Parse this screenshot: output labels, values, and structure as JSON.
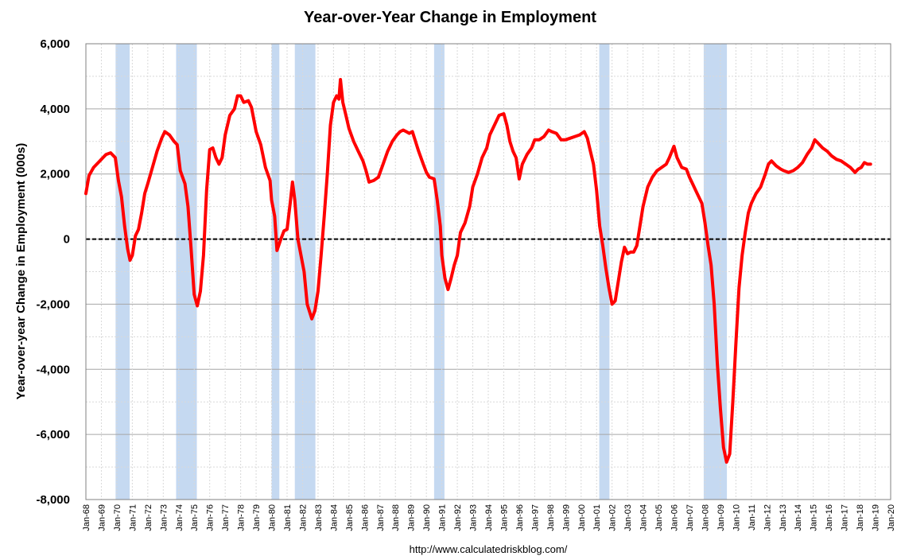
{
  "chart_data": {
    "type": "line",
    "title": "Year-over-Year Change in Employment",
    "xlabel": "",
    "ylabel": "Year-over-year Change in Employment (000s)",
    "source": "http://www.calculatedriskblog.com/",
    "ylim": [
      -8000,
      6000
    ],
    "xlim": [
      "Jan-68",
      "Jan-20"
    ],
    "yticks": [
      "-8,000",
      "-6,000",
      "-4,000",
      "-2,000",
      "0",
      "2,000",
      "4,000",
      "6,000"
    ],
    "ytick_values": [
      -8000,
      -6000,
      -4000,
      -2000,
      0,
      2000,
      4000,
      6000
    ],
    "xticks": [
      "Jan-68",
      "Jan-69",
      "Jan-70",
      "Jan-71",
      "Jan-72",
      "Jan-73",
      "Jan-74",
      "Jan-75",
      "Jan-76",
      "Jan-77",
      "Jan-78",
      "Jan-79",
      "Jan-80",
      "Jan-81",
      "Jan-82",
      "Jan-83",
      "Jan-84",
      "Jan-85",
      "Jan-86",
      "Jan-87",
      "Jan-88",
      "Jan-89",
      "Jan-90",
      "Jan-91",
      "Jan-92",
      "Jan-93",
      "Jan-94",
      "Jan-95",
      "Jan-96",
      "Jan-97",
      "Jan-98",
      "Jan-99",
      "Jan-00",
      "Jan-01",
      "Jan-02",
      "Jan-03",
      "Jan-04",
      "Jan-05",
      "Jan-06",
      "Jan-07",
      "Jan-08",
      "Jan-09",
      "Jan-10",
      "Jan-11",
      "Jan-12",
      "Jan-13",
      "Jan-14",
      "Jan-15",
      "Jan-16",
      "Jan-17",
      "Jan-18",
      "Jan-19",
      "Jan-20"
    ],
    "grid": true,
    "zero_line": true,
    "colors": {
      "line": "#ff0000",
      "recession": "#c5d9f1",
      "grid_major": "#a6a6a6",
      "grid_minor": "#d9d9d9"
    },
    "recessions": [
      {
        "start": 1969.92,
        "end": 1970.83
      },
      {
        "start": 1973.83,
        "end": 1975.17
      },
      {
        "start": 1980.0,
        "end": 1980.5
      },
      {
        "start": 1981.5,
        "end": 1982.83
      },
      {
        "start": 1990.5,
        "end": 1991.17
      },
      {
        "start": 2001.17,
        "end": 2001.83
      },
      {
        "start": 2007.92,
        "end": 2009.42
      }
    ],
    "series": [
      {
        "values": [
          [
            1968.0,
            1400
          ],
          [
            1968.2,
            1950
          ],
          [
            1968.5,
            2200
          ],
          [
            1968.8,
            2350
          ],
          [
            1969.1,
            2500
          ],
          [
            1969.3,
            2600
          ],
          [
            1969.6,
            2650
          ],
          [
            1969.9,
            2500
          ],
          [
            1970.1,
            1800
          ],
          [
            1970.3,
            1300
          ],
          [
            1970.5,
            400
          ],
          [
            1970.7,
            -300
          ],
          [
            1970.85,
            -650
          ],
          [
            1971.0,
            -500
          ],
          [
            1971.2,
            100
          ],
          [
            1971.4,
            300
          ],
          [
            1971.6,
            800
          ],
          [
            1971.8,
            1400
          ],
          [
            1972.0,
            1700
          ],
          [
            1972.3,
            2200
          ],
          [
            1972.6,
            2700
          ],
          [
            1972.9,
            3100
          ],
          [
            1973.1,
            3300
          ],
          [
            1973.4,
            3200
          ],
          [
            1973.7,
            3000
          ],
          [
            1973.9,
            2900
          ],
          [
            1974.1,
            2100
          ],
          [
            1974.4,
            1700
          ],
          [
            1974.6,
            1000
          ],
          [
            1974.8,
            -300
          ],
          [
            1975.0,
            -1700
          ],
          [
            1975.2,
            -2050
          ],
          [
            1975.4,
            -1600
          ],
          [
            1975.6,
            -500
          ],
          [
            1975.8,
            1500
          ],
          [
            1976.0,
            2750
          ],
          [
            1976.2,
            2800
          ],
          [
            1976.4,
            2500
          ],
          [
            1976.6,
            2300
          ],
          [
            1976.8,
            2500
          ],
          [
            1977.0,
            3200
          ],
          [
            1977.3,
            3800
          ],
          [
            1977.6,
            4000
          ],
          [
            1977.8,
            4400
          ],
          [
            1978.0,
            4400
          ],
          [
            1978.2,
            4200
          ],
          [
            1978.5,
            4250
          ],
          [
            1978.7,
            4050
          ],
          [
            1979.0,
            3300
          ],
          [
            1979.3,
            2900
          ],
          [
            1979.6,
            2200
          ],
          [
            1979.9,
            1800
          ],
          [
            1980.0,
            1200
          ],
          [
            1980.2,
            700
          ],
          [
            1980.35,
            -350
          ],
          [
            1980.6,
            0
          ],
          [
            1980.8,
            250
          ],
          [
            1981.0,
            300
          ],
          [
            1981.2,
            1100
          ],
          [
            1981.35,
            1750
          ],
          [
            1981.5,
            1200
          ],
          [
            1981.7,
            0
          ],
          [
            1981.9,
            -500
          ],
          [
            1982.1,
            -1000
          ],
          [
            1982.3,
            -2000
          ],
          [
            1982.6,
            -2450
          ],
          [
            1982.8,
            -2200
          ],
          [
            1983.0,
            -1600
          ],
          [
            1983.2,
            -500
          ],
          [
            1983.4,
            700
          ],
          [
            1983.6,
            2000
          ],
          [
            1983.8,
            3500
          ],
          [
            1984.0,
            4200
          ],
          [
            1984.2,
            4400
          ],
          [
            1984.35,
            4300
          ],
          [
            1984.45,
            4900
          ],
          [
            1984.6,
            4200
          ],
          [
            1984.8,
            3800
          ],
          [
            1985.0,
            3400
          ],
          [
            1985.3,
            3000
          ],
          [
            1985.6,
            2700
          ],
          [
            1985.9,
            2400
          ],
          [
            1986.1,
            2100
          ],
          [
            1986.3,
            1750
          ],
          [
            1986.6,
            1800
          ],
          [
            1986.9,
            1900
          ],
          [
            1987.2,
            2300
          ],
          [
            1987.5,
            2700
          ],
          [
            1987.8,
            3000
          ],
          [
            1988.1,
            3200
          ],
          [
            1988.3,
            3300
          ],
          [
            1988.5,
            3350
          ],
          [
            1988.7,
            3300
          ],
          [
            1988.9,
            3250
          ],
          [
            1989.1,
            3300
          ],
          [
            1989.3,
            3000
          ],
          [
            1989.5,
            2700
          ],
          [
            1989.8,
            2300
          ],
          [
            1990.0,
            2050
          ],
          [
            1990.2,
            1900
          ],
          [
            1990.5,
            1850
          ],
          [
            1990.7,
            1200
          ],
          [
            1990.9,
            400
          ],
          [
            1991.0,
            -500
          ],
          [
            1991.2,
            -1200
          ],
          [
            1991.4,
            -1550
          ],
          [
            1991.6,
            -1200
          ],
          [
            1991.8,
            -800
          ],
          [
            1992.0,
            -500
          ],
          [
            1992.2,
            200
          ],
          [
            1992.5,
            500
          ],
          [
            1992.8,
            1000
          ],
          [
            1993.0,
            1600
          ],
          [
            1993.3,
            2000
          ],
          [
            1993.6,
            2500
          ],
          [
            1993.9,
            2800
          ],
          [
            1994.1,
            3200
          ],
          [
            1994.4,
            3500
          ],
          [
            1994.7,
            3800
          ],
          [
            1995.0,
            3850
          ],
          [
            1995.2,
            3500
          ],
          [
            1995.4,
            3000
          ],
          [
            1995.6,
            2700
          ],
          [
            1995.8,
            2500
          ],
          [
            1996.0,
            1850
          ],
          [
            1996.2,
            2300
          ],
          [
            1996.5,
            2600
          ],
          [
            1996.8,
            2800
          ],
          [
            1997.0,
            3050
          ],
          [
            1997.3,
            3050
          ],
          [
            1997.6,
            3150
          ],
          [
            1997.9,
            3350
          ],
          [
            1998.1,
            3300
          ],
          [
            1998.4,
            3250
          ],
          [
            1998.7,
            3050
          ],
          [
            1999.0,
            3050
          ],
          [
            1999.3,
            3100
          ],
          [
            1999.6,
            3150
          ],
          [
            1999.9,
            3200
          ],
          [
            2000.2,
            3300
          ],
          [
            2000.4,
            3100
          ],
          [
            2000.6,
            2700
          ],
          [
            2000.8,
            2300
          ],
          [
            2001.0,
            1500
          ],
          [
            2001.2,
            400
          ],
          [
            2001.4,
            -200
          ],
          [
            2001.6,
            -900
          ],
          [
            2001.8,
            -1500
          ],
          [
            2002.0,
            -2000
          ],
          [
            2002.2,
            -1900
          ],
          [
            2002.4,
            -1300
          ],
          [
            2002.6,
            -700
          ],
          [
            2002.8,
            -250
          ],
          [
            2003.0,
            -450
          ],
          [
            2003.2,
            -400
          ],
          [
            2003.4,
            -400
          ],
          [
            2003.6,
            -200
          ],
          [
            2003.8,
            400
          ],
          [
            2004.0,
            1000
          ],
          [
            2004.3,
            1600
          ],
          [
            2004.6,
            1900
          ],
          [
            2004.9,
            2100
          ],
          [
            2005.2,
            2200
          ],
          [
            2005.5,
            2300
          ],
          [
            2005.7,
            2500
          ],
          [
            2006.0,
            2850
          ],
          [
            2006.2,
            2500
          ],
          [
            2006.5,
            2200
          ],
          [
            2006.8,
            2150
          ],
          [
            2007.0,
            1900
          ],
          [
            2007.2,
            1700
          ],
          [
            2007.5,
            1400
          ],
          [
            2007.8,
            1100
          ],
          [
            2008.0,
            500
          ],
          [
            2008.2,
            -200
          ],
          [
            2008.4,
            -800
          ],
          [
            2008.6,
            -2000
          ],
          [
            2008.8,
            -3800
          ],
          [
            2009.0,
            -5200
          ],
          [
            2009.2,
            -6400
          ],
          [
            2009.4,
            -6850
          ],
          [
            2009.6,
            -6600
          ],
          [
            2009.8,
            -5000
          ],
          [
            2010.0,
            -3200
          ],
          [
            2010.2,
            -1500
          ],
          [
            2010.4,
            -500
          ],
          [
            2010.6,
            200
          ],
          [
            2010.8,
            800
          ],
          [
            2011.0,
            1100
          ],
          [
            2011.3,
            1400
          ],
          [
            2011.6,
            1600
          ],
          [
            2011.9,
            2000
          ],
          [
            2012.1,
            2300
          ],
          [
            2012.3,
            2400
          ],
          [
            2012.6,
            2250
          ],
          [
            2012.9,
            2150
          ],
          [
            2013.1,
            2100
          ],
          [
            2013.4,
            2050
          ],
          [
            2013.7,
            2100
          ],
          [
            2014.0,
            2200
          ],
          [
            2014.3,
            2350
          ],
          [
            2014.6,
            2600
          ],
          [
            2014.9,
            2800
          ],
          [
            2015.1,
            3050
          ],
          [
            2015.3,
            2950
          ],
          [
            2015.6,
            2800
          ],
          [
            2015.9,
            2700
          ],
          [
            2016.2,
            2550
          ],
          [
            2016.5,
            2450
          ],
          [
            2016.8,
            2400
          ],
          [
            2017.1,
            2300
          ],
          [
            2017.4,
            2200
          ],
          [
            2017.7,
            2050
          ],
          [
            2017.9,
            2150
          ],
          [
            2018.1,
            2200
          ],
          [
            2018.3,
            2350
          ],
          [
            2018.5,
            2300
          ],
          [
            2018.7,
            2300
          ]
        ]
      }
    ]
  }
}
